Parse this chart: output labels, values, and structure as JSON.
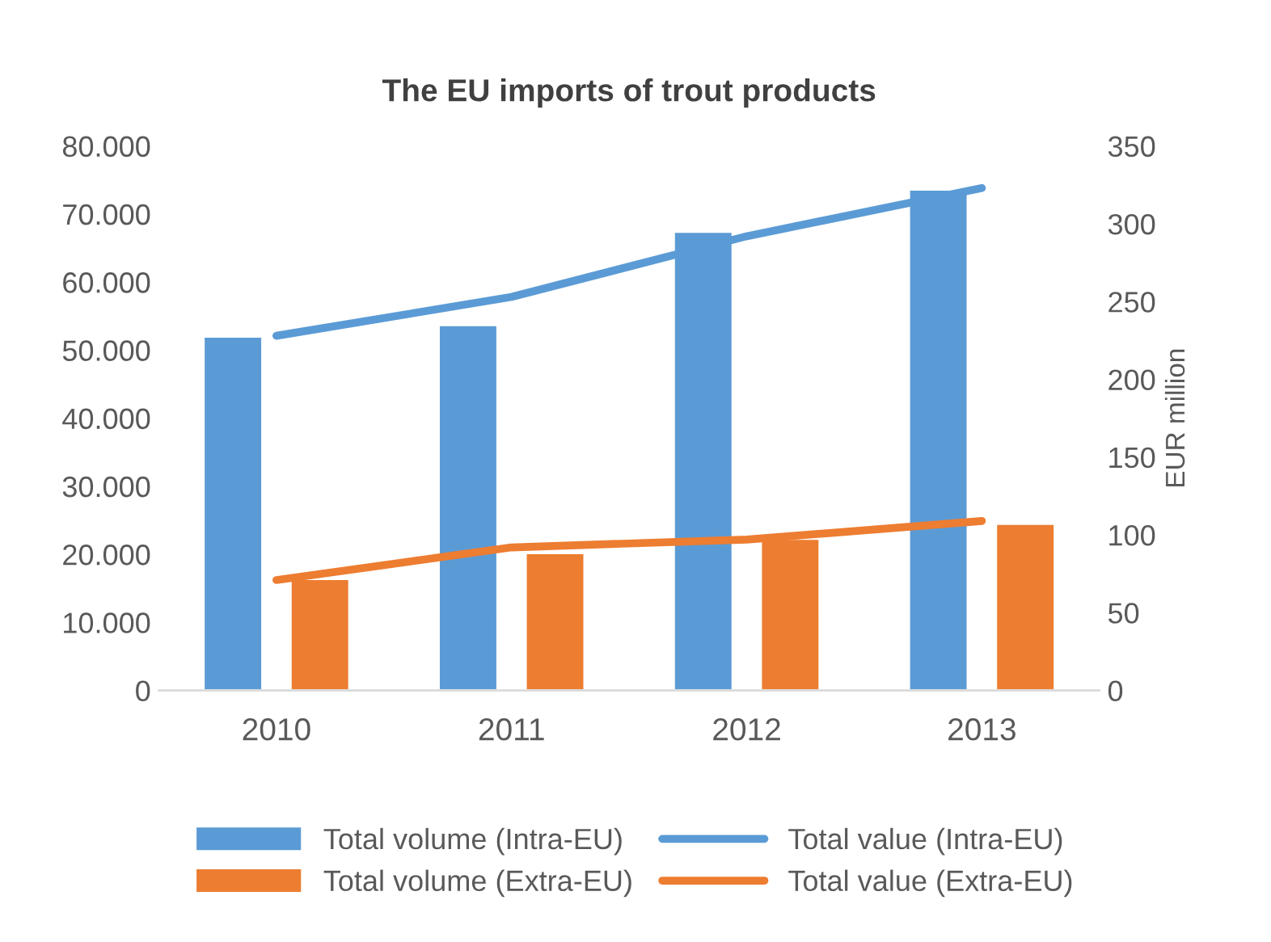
{
  "chart_data": {
    "type": "bar",
    "title": "The EU imports of trout products",
    "y2label": "EUR million",
    "categories": [
      "2010",
      "2011",
      "2012",
      "2013"
    ],
    "series": [
      {
        "name": "Total volume (Intra-EU)",
        "color": "#5b9bd5",
        "values": [
          52000,
          53700,
          67400,
          73600
        ]
      },
      {
        "name": "Total volume (Extra-EU)",
        "color": "#ed7d31",
        "values": [
          16400,
          20200,
          22300,
          24500
        ]
      },
      {
        "name": "Total value (Intra-EU)",
        "type": "line",
        "axis": "y2",
        "color": "#5b9bd5",
        "values": [
          228,
          253,
          292,
          323
        ]
      },
      {
        "name": "Total value (Extra-EU)",
        "type": "line",
        "axis": "y2",
        "color": "#ed7d31",
        "values": [
          71,
          92,
          97,
          109
        ]
      }
    ],
    "ylim": [
      0,
      80000
    ],
    "yticks": [
      {
        "value": 0,
        "label": "0"
      },
      {
        "value": 10000,
        "label": "10.000"
      },
      {
        "value": 20000,
        "label": "20.000"
      },
      {
        "value": 30000,
        "label": "30.000"
      },
      {
        "value": 40000,
        "label": "40.000"
      },
      {
        "value": 50000,
        "label": "50.000"
      },
      {
        "value": 60000,
        "label": "60.000"
      },
      {
        "value": 70000,
        "label": "70.000"
      },
      {
        "value": 80000,
        "label": "80.000"
      }
    ],
    "y2lim": [
      0,
      350
    ],
    "y2ticks": [
      0,
      50,
      100,
      150,
      200,
      250,
      300,
      350
    ],
    "grid": false,
    "legend": "bottom"
  }
}
